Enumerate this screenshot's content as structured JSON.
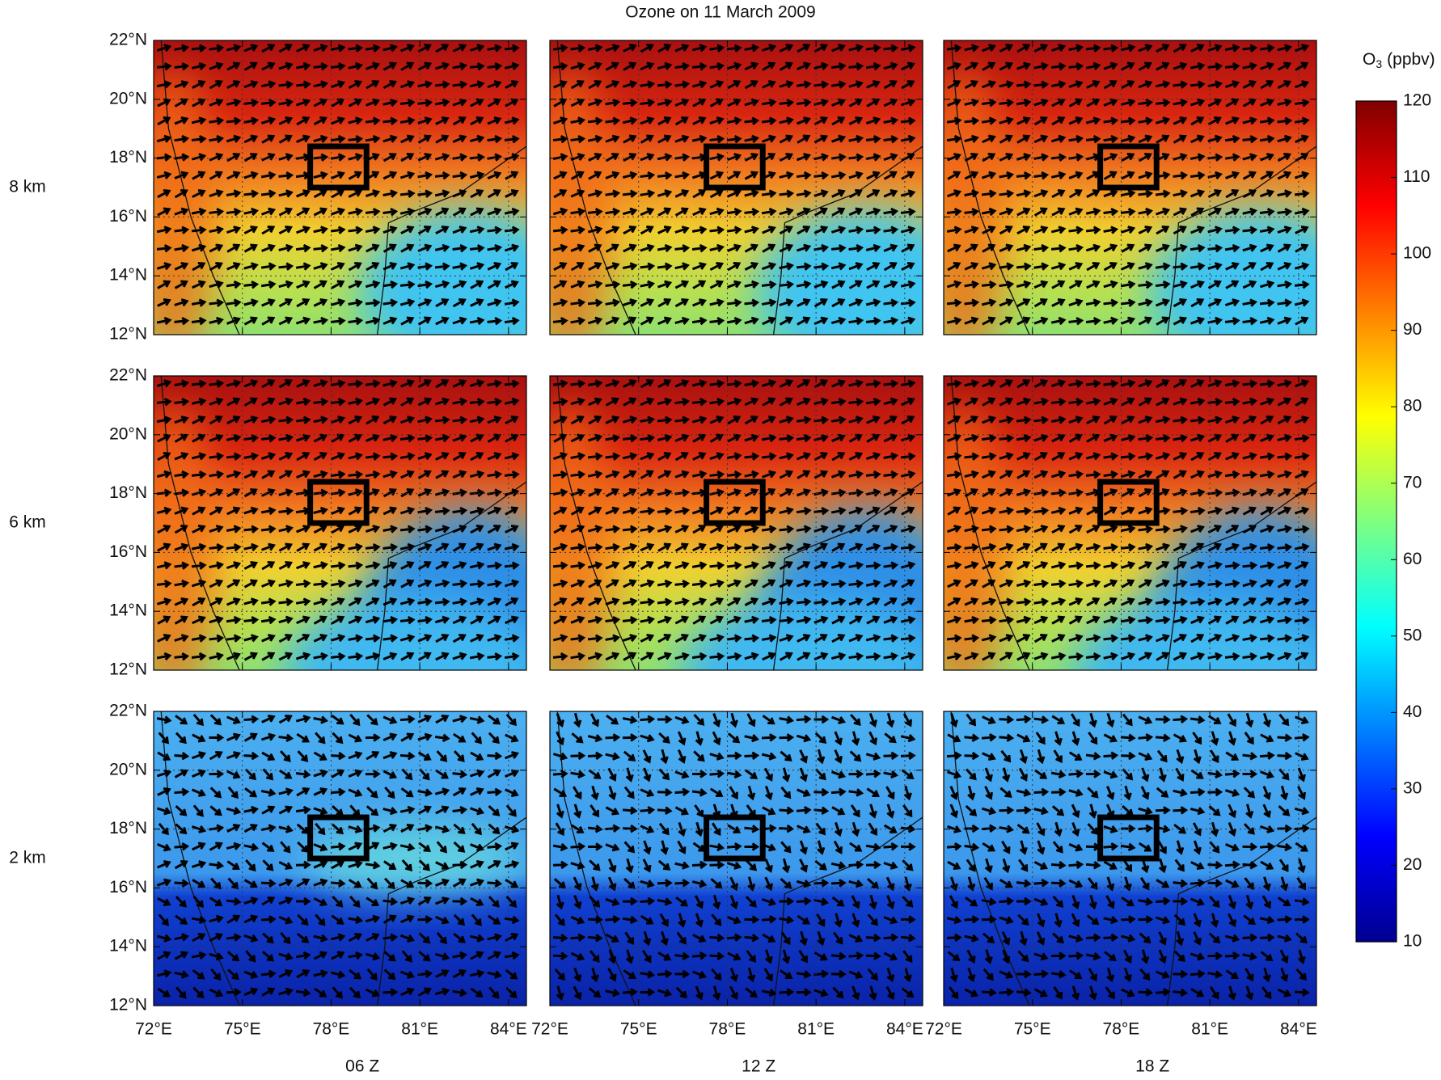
{
  "title": "Ozone on 11 March 2009",
  "rows": [
    "8 km",
    "6 km",
    "2 km"
  ],
  "columns": [
    "06 Z",
    "12 Z",
    "18 Z"
  ],
  "lat_ticks": [
    "22°N",
    "20°N",
    "18°N",
    "16°N",
    "14°N",
    "12°N"
  ],
  "lon_ticks": [
    "72°E",
    "75°E",
    "78°E",
    "81°E",
    "84°E"
  ],
  "colorbar": {
    "label": "O",
    "label_sub": "3",
    "label_unit": "(ppbv)",
    "range": [
      10,
      120
    ],
    "ticks": [
      10,
      20,
      30,
      40,
      50,
      60,
      70,
      80,
      90,
      100,
      110,
      120
    ]
  }
}
